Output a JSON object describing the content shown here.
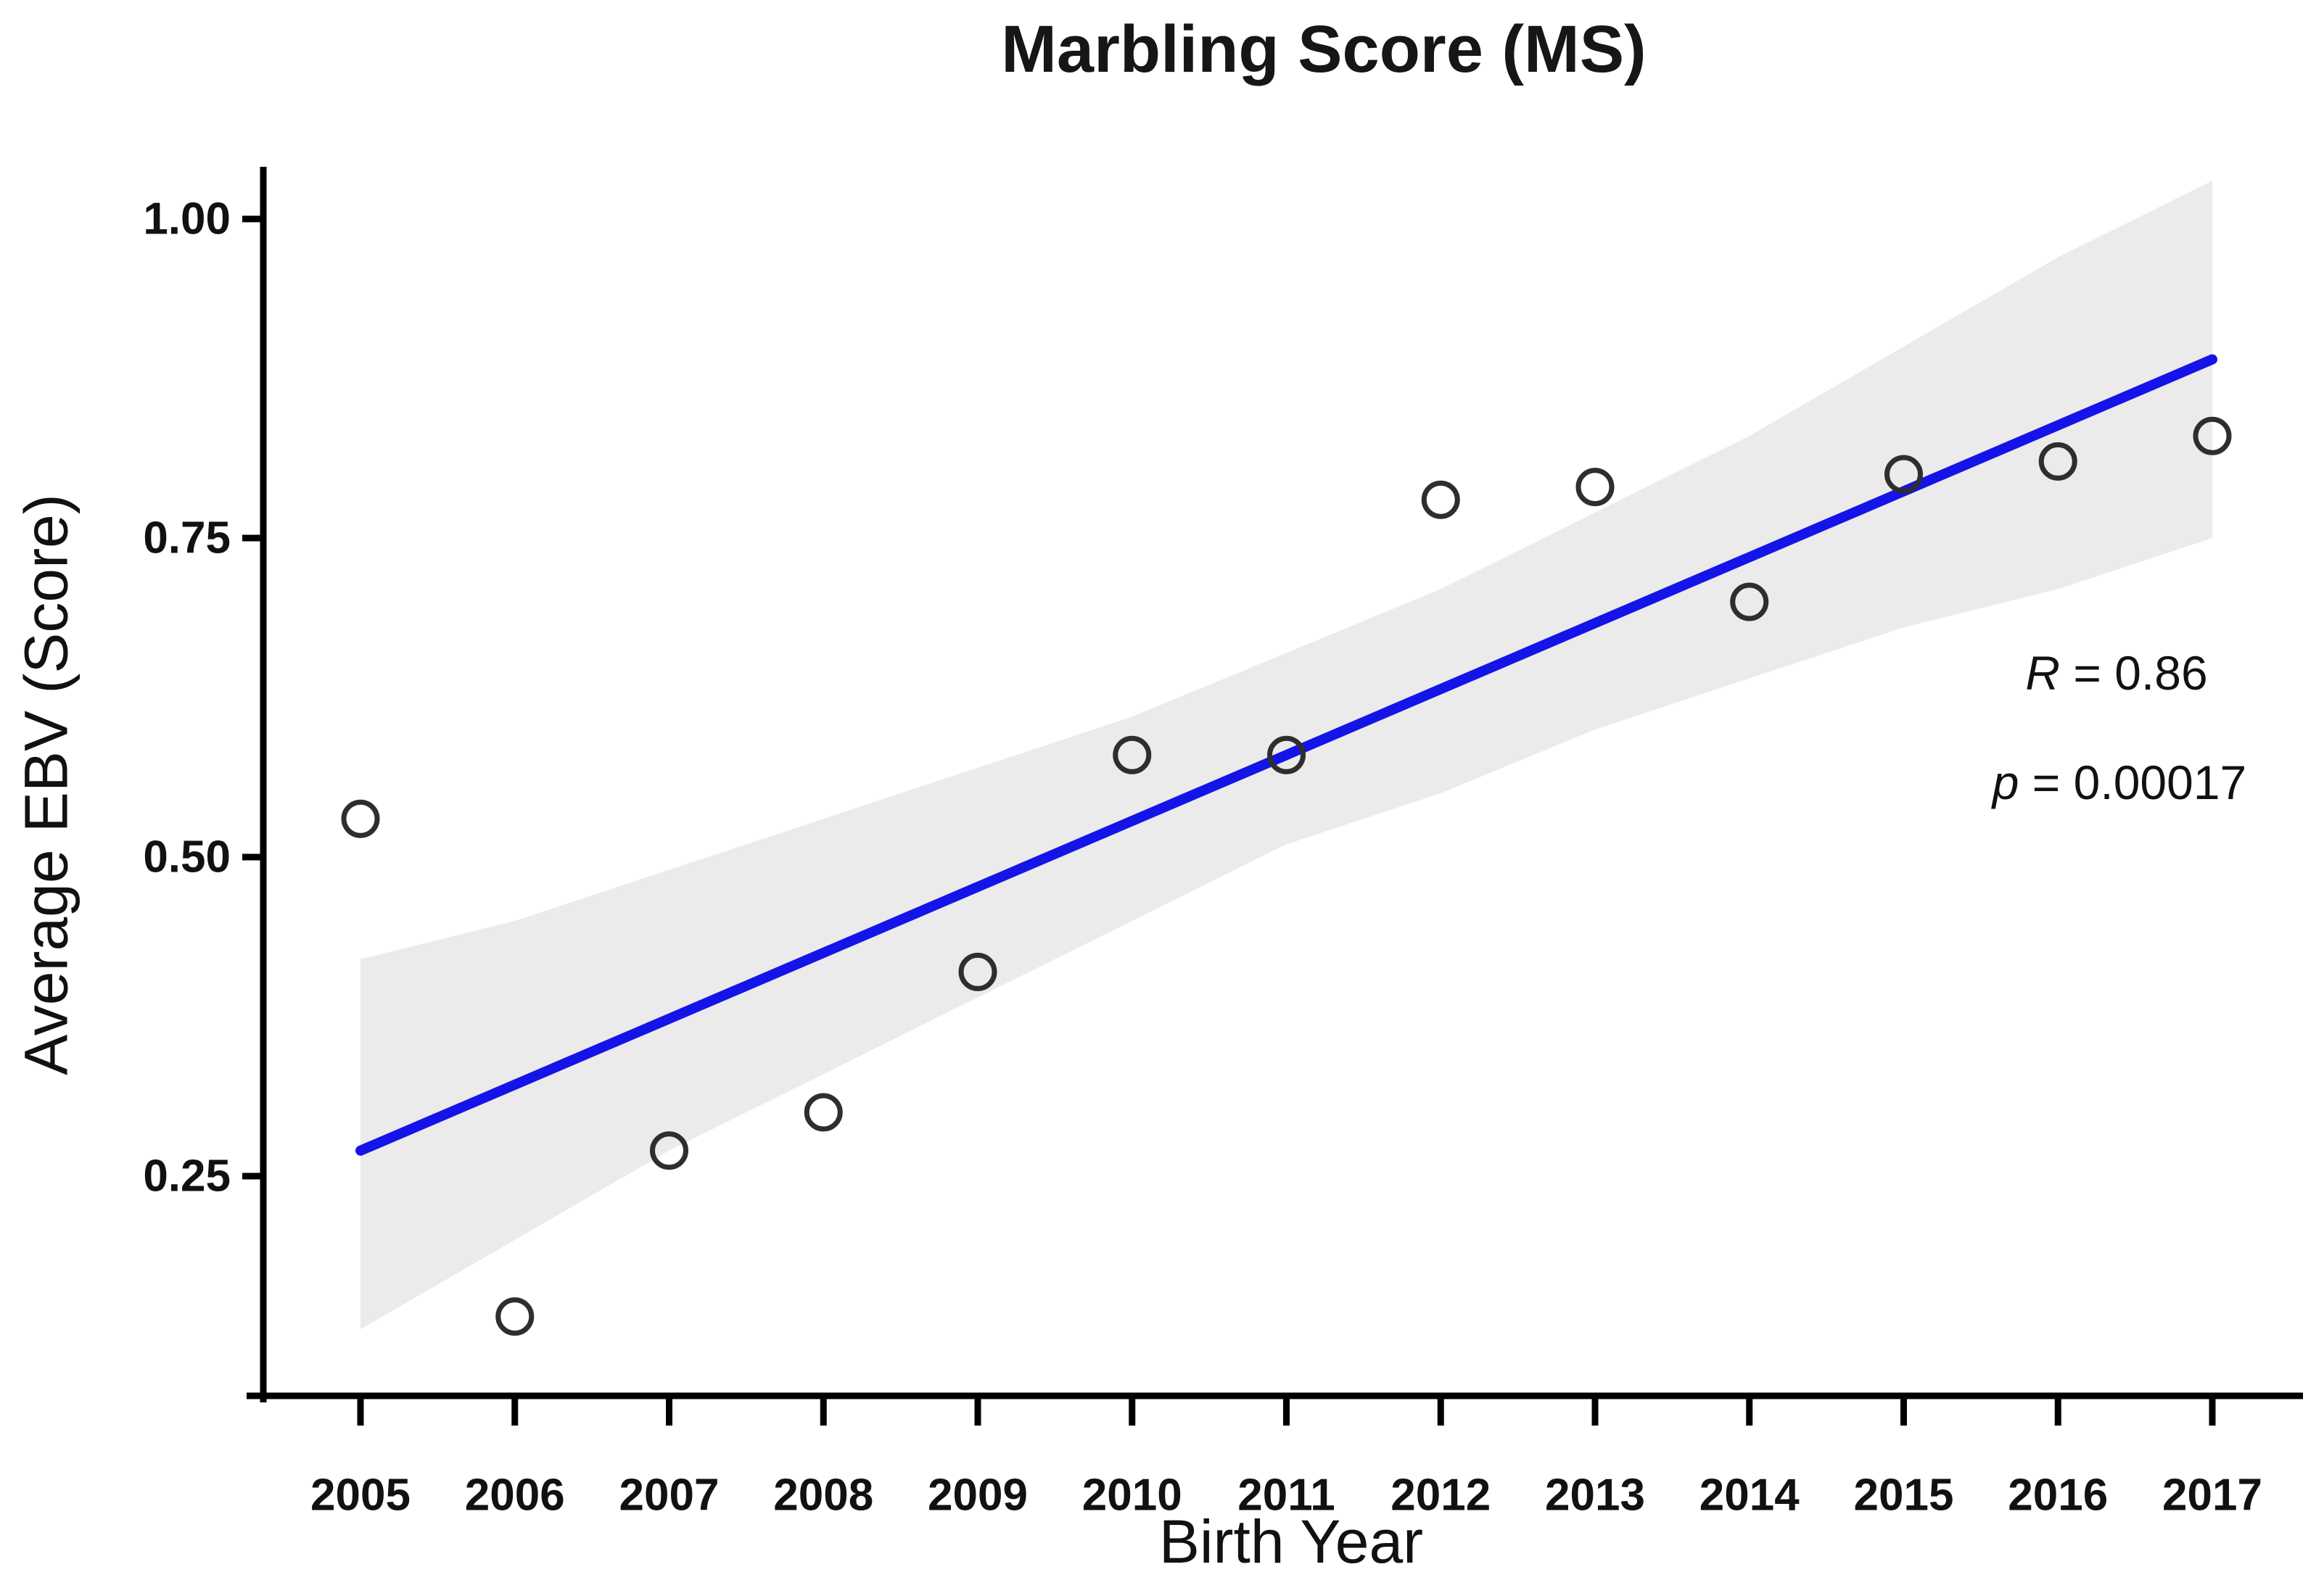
{
  "figure": {
    "title": "Marbling Score (MS)"
  },
  "stats": {
    "r": {
      "label": "R",
      "text": " = 0.86"
    },
    "p": {
      "label": "p",
      "text": " = 0.00017"
    }
  },
  "colors": {
    "regression_line": "#1414e8",
    "confidence_band": "#ebebeb",
    "point_stroke": "#2e2e2e",
    "axis": "#000000",
    "text": "#111111"
  },
  "chart_data": {
    "type": "scatter",
    "title": "Marbling Score (MS)",
    "xlabel": "Birth Year",
    "ylabel": "Average EBV (Score)",
    "x": [
      2005,
      2006,
      2007,
      2008,
      2009,
      2010,
      2011,
      2012,
      2013,
      2014,
      2015,
      2016,
      2017
    ],
    "y": [
      0.53,
      0.14,
      0.27,
      0.3,
      0.41,
      0.58,
      0.58,
      0.78,
      0.79,
      0.7,
      0.8,
      0.81,
      0.83
    ],
    "x_tick_labels": [
      "2005",
      "2006",
      "2007",
      "2008",
      "2009",
      "2010",
      "2011",
      "2012",
      "2013",
      "2014",
      "2015",
      "2016",
      "2017"
    ],
    "y_ticks": [
      1.0,
      0.75,
      0.5,
      0.25
    ],
    "y_tick_labels": [
      "1.00",
      "0.75",
      "0.50",
      "0.25"
    ],
    "xlim": [
      2004.37,
      2017.59
    ],
    "ylim": [
      0.08,
      1.04
    ],
    "grid": "off",
    "legend": "none",
    "marker": "open-circle",
    "regression_line": {
      "x": [
        2005,
        2017
      ],
      "y": [
        0.27,
        0.89
      ]
    },
    "confidence_band": {
      "upper": [
        0.42,
        0.45,
        0.49,
        0.53,
        0.57,
        0.61,
        0.66,
        0.71,
        0.77,
        0.83,
        0.9,
        0.97,
        1.03
      ],
      "lower": [
        0.13,
        0.2,
        0.27,
        0.33,
        0.39,
        0.45,
        0.51,
        0.55,
        0.6,
        0.64,
        0.68,
        0.71,
        0.75
      ]
    },
    "annotations": [
      "R = 0.86",
      "p = 0.00017"
    ]
  }
}
